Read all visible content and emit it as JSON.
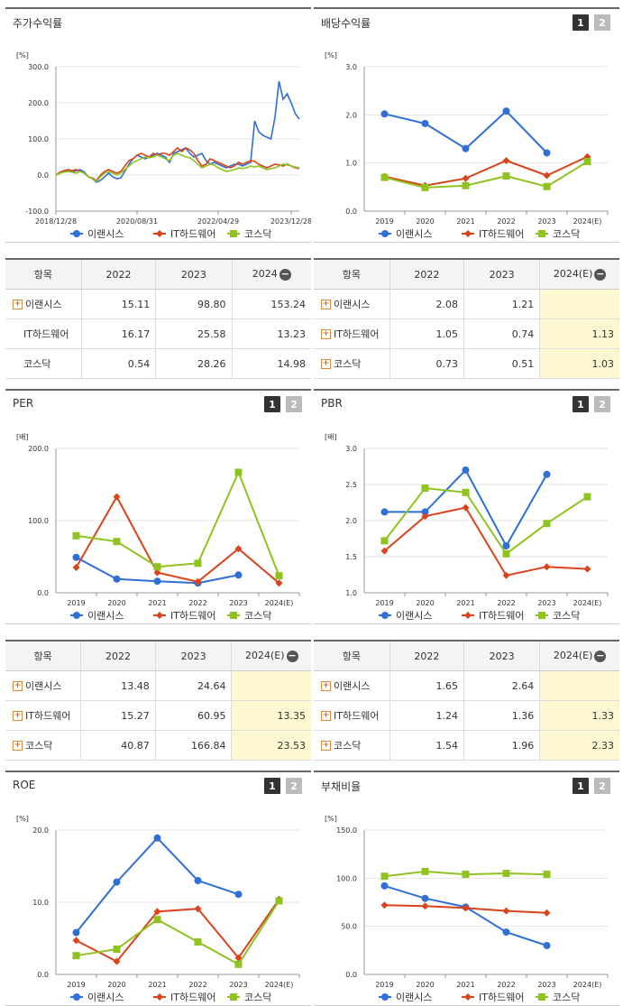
{
  "colors": {
    "s1": "#2f6fd6",
    "s2": "#d9441c",
    "s3": "#8fc31f"
  },
  "tabs": {
    "t1": "1",
    "t2": "2"
  },
  "series_names": [
    "이랜시스",
    "IT하드웨어",
    "코스닥"
  ],
  "charts": [
    {
      "title": "주가수익률",
      "unit": "[%]",
      "has_tabs": false,
      "chart_data": {
        "type": "line",
        "x_tick_labels": [
          "2018/12/28",
          "2020/08/31",
          "2022/04/29",
          "2023/12/28"
        ],
        "ylim": [
          -100,
          300
        ],
        "y_ticks": [
          "-100.0",
          "0.0",
          "100.0",
          "200.0",
          "300.0"
        ],
        "n_points": 61,
        "x_tick_index": [
          0,
          20,
          40,
          58
        ],
        "series": [
          {
            "name": "이랜시스",
            "values": [
              0,
              5,
              10,
              12,
              8,
              12,
              15,
              8,
              -5,
              -10,
              -20,
              -15,
              -5,
              5,
              -5,
              -10,
              -8,
              10,
              30,
              45,
              55,
              50,
              45,
              50,
              55,
              60,
              55,
              50,
              35,
              60,
              65,
              70,
              75,
              60,
              50,
              55,
              60,
              40,
              30,
              35,
              30,
              25,
              20,
              25,
              30,
              30,
              25,
              30,
              35,
              150,
              120,
              110,
              105,
              100,
              160,
              260,
              210,
              225,
              200,
              170,
              155
            ]
          },
          {
            "name": "IT하드웨어",
            "values": [
              0,
              8,
              12,
              15,
              12,
              15,
              10,
              5,
              -5,
              -8,
              -15,
              0,
              10,
              15,
              10,
              5,
              10,
              25,
              40,
              45,
              55,
              60,
              55,
              50,
              60,
              55,
              60,
              60,
              55,
              65,
              75,
              65,
              75,
              70,
              60,
              40,
              25,
              30,
              45,
              40,
              35,
              30,
              25,
              20,
              25,
              35,
              30,
              35,
              40,
              38,
              30,
              25,
              20,
              25,
              30,
              28,
              25,
              30,
              25,
              20,
              18
            ]
          },
          {
            "name": "코스닥",
            "values": [
              0,
              5,
              8,
              10,
              8,
              5,
              10,
              5,
              -5,
              -10,
              -18,
              -5,
              5,
              10,
              5,
              0,
              5,
              15,
              25,
              35,
              40,
              45,
              50,
              48,
              50,
              55,
              50,
              45,
              40,
              55,
              60,
              55,
              50,
              48,
              40,
              30,
              20,
              25,
              30,
              28,
              20,
              15,
              10,
              12,
              15,
              20,
              18,
              20,
              25,
              22,
              25,
              20,
              15,
              18,
              20,
              25,
              30,
              28,
              25,
              22,
              20
            ]
          }
        ]
      }
    },
    {
      "title": "배당수익률",
      "unit": "[%]",
      "has_tabs": true,
      "chart_data": {
        "type": "line",
        "categories": [
          "2019",
          "2020",
          "2021",
          "2022",
          "2023",
          "2024(E)"
        ],
        "ylim": [
          0,
          3
        ],
        "y_ticks": [
          "0.0",
          "1.0",
          "2.0",
          "3.0"
        ],
        "series": [
          {
            "name": "이랜시스",
            "values": [
              2.02,
              1.82,
              1.3,
              2.08,
              1.21,
              null
            ]
          },
          {
            "name": "IT하드웨어",
            "values": [
              0.72,
              0.53,
              0.68,
              1.05,
              0.74,
              1.13
            ]
          },
          {
            "name": "코스닥",
            "values": [
              0.7,
              0.49,
              0.53,
              0.73,
              0.51,
              1.03
            ]
          }
        ]
      }
    },
    {
      "title": "PER",
      "unit": "[배]",
      "has_tabs": true,
      "chart_data": {
        "type": "line",
        "categories": [
          "2019",
          "2020",
          "2021",
          "2022",
          "2023",
          "2024(E)"
        ],
        "ylim": [
          0,
          200
        ],
        "y_ticks": [
          "0.0",
          "100.0",
          "200.0"
        ],
        "series": [
          {
            "name": "이랜시스",
            "values": [
              49,
              19,
              16,
              13.48,
              24.64,
              null
            ]
          },
          {
            "name": "IT하드웨어",
            "values": [
              35,
              133,
              28,
              15.27,
              60.95,
              13.35
            ]
          },
          {
            "name": "코스닥",
            "values": [
              79,
              71,
              36,
              40.87,
              166.84,
              23.53
            ]
          }
        ]
      }
    },
    {
      "title": "PBR",
      "unit": "[배]",
      "has_tabs": true,
      "chart_data": {
        "type": "line",
        "categories": [
          "2019",
          "2020",
          "2021",
          "2022",
          "2023",
          "2024(E)"
        ],
        "ylim": [
          1,
          3
        ],
        "y_ticks": [
          "1.0",
          "1.5",
          "2.0",
          "2.5",
          "3.0"
        ],
        "series": [
          {
            "name": "이랜시스",
            "values": [
              2.12,
              2.12,
              2.7,
              1.65,
              2.64,
              null
            ]
          },
          {
            "name": "IT하드웨어",
            "values": [
              1.58,
              2.06,
              2.18,
              1.24,
              1.36,
              1.33
            ]
          },
          {
            "name": "코스닥",
            "values": [
              1.72,
              2.45,
              2.39,
              1.54,
              1.96,
              2.33
            ]
          }
        ]
      }
    },
    {
      "title": "ROE",
      "unit": "[%]",
      "has_tabs": true,
      "chart_data": {
        "type": "line",
        "categories": [
          "2019",
          "2020",
          "2021",
          "2022",
          "2023",
          "2024(E)"
        ],
        "ylim": [
          0,
          20
        ],
        "y_ticks": [
          "0.0",
          "10.0",
          "20.0"
        ],
        "series": [
          {
            "name": "이랜시스",
            "values": [
              5.8,
              12.8,
              18.9,
              13.0,
              11.1,
              null
            ]
          },
          {
            "name": "IT하드웨어",
            "values": [
              4.7,
              1.8,
              8.7,
              9.1,
              2.3,
              10.4
            ]
          },
          {
            "name": "코스닥",
            "values": [
              2.6,
              3.5,
              7.6,
              4.5,
              1.4,
              10.2
            ]
          }
        ]
      }
    },
    {
      "title": "부채비율",
      "unit": "[%]",
      "has_tabs": true,
      "chart_data": {
        "type": "line",
        "categories": [
          "2019",
          "2020",
          "2021",
          "2022",
          "2023",
          "2024(E)"
        ],
        "ylim": [
          0,
          150
        ],
        "y_ticks": [
          "0.0",
          "50.0",
          "100.0",
          "150.0"
        ],
        "series": [
          {
            "name": "이랜시스",
            "values": [
              92,
              79,
              70,
              44,
              30,
              null
            ]
          },
          {
            "name": "IT하드웨어",
            "values": [
              72,
              71,
              69,
              66,
              64,
              null
            ]
          },
          {
            "name": "코스닥",
            "values": [
              102,
              107,
              104,
              105,
              104,
              null
            ]
          }
        ]
      }
    }
  ],
  "tables": [
    {
      "header": [
        "항목",
        "2022",
        "2023",
        "2024"
      ],
      "rows": [
        {
          "label": "이랜시스",
          "plus": true,
          "values": [
            "15.11",
            "98.80",
            "153.24"
          ]
        },
        {
          "label": "IT하드웨어",
          "plus": false,
          "values": [
            "16.17",
            "25.58",
            "13.23"
          ]
        },
        {
          "label": "코스닥",
          "plus": false,
          "values": [
            "0.54",
            "28.26",
            "14.98"
          ]
        }
      ],
      "highlight_last": false
    },
    {
      "header": [
        "항목",
        "2022",
        "2023",
        "2024(E)"
      ],
      "rows": [
        {
          "label": "이랜시스",
          "plus": true,
          "values": [
            "2.08",
            "1.21",
            ""
          ]
        },
        {
          "label": "IT하드웨어",
          "plus": true,
          "values": [
            "1.05",
            "0.74",
            "1.13"
          ]
        },
        {
          "label": "코스닥",
          "plus": true,
          "values": [
            "0.73",
            "0.51",
            "1.03"
          ]
        }
      ],
      "highlight_last": true
    },
    {
      "header": [
        "항목",
        "2022",
        "2023",
        "2024(E)"
      ],
      "rows": [
        {
          "label": "이랜시스",
          "plus": true,
          "values": [
            "13.48",
            "24.64",
            ""
          ]
        },
        {
          "label": "IT하드웨어",
          "plus": true,
          "values": [
            "15.27",
            "60.95",
            "13.35"
          ]
        },
        {
          "label": "코스닥",
          "plus": true,
          "values": [
            "40.87",
            "166.84",
            "23.53"
          ]
        }
      ],
      "highlight_last": true
    },
    {
      "header": [
        "항목",
        "2022",
        "2023",
        "2024(E)"
      ],
      "rows": [
        {
          "label": "이랜시스",
          "plus": true,
          "values": [
            "1.65",
            "2.64",
            ""
          ]
        },
        {
          "label": "IT하드웨어",
          "plus": true,
          "values": [
            "1.24",
            "1.36",
            "1.33"
          ]
        },
        {
          "label": "코스닥",
          "plus": true,
          "values": [
            "1.54",
            "1.96",
            "2.33"
          ]
        }
      ],
      "highlight_last": true
    }
  ]
}
